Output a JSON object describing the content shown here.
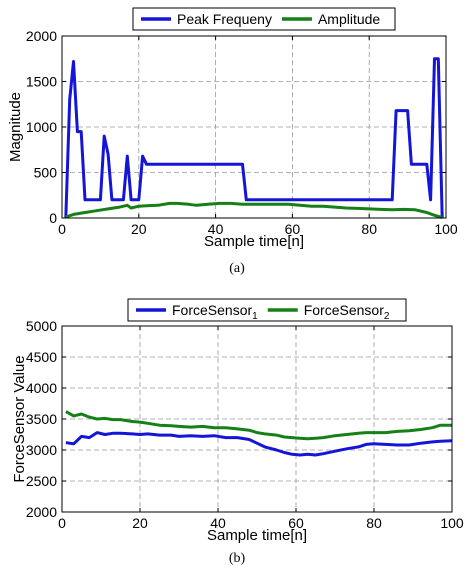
{
  "chart_data": [
    {
      "type": "line",
      "caption": "(a)",
      "xlabel": "Sample time[n]",
      "ylabel": "Magnitude",
      "xlim": [
        0,
        100
      ],
      "ylim": [
        0,
        2000
      ],
      "xticks": [
        0,
        20,
        40,
        60,
        80,
        100
      ],
      "yticks": [
        0,
        500,
        1000,
        1500,
        2000
      ],
      "grid": true,
      "legend_position": "top",
      "series": [
        {
          "name": "Peak Frequeny",
          "color": "#1515d8",
          "x": [
            1,
            2,
            3,
            4,
            5,
            6,
            7,
            8,
            9,
            10,
            11,
            12,
            13,
            14,
            15,
            16,
            17,
            18,
            19,
            20,
            21,
            22,
            23,
            47,
            48,
            86,
            87,
            88,
            89,
            90,
            91,
            92,
            93,
            94,
            95,
            96,
            97,
            98,
            99
          ],
          "y": [
            0,
            1300,
            1720,
            950,
            950,
            200,
            200,
            200,
            200,
            200,
            900,
            700,
            200,
            200,
            200,
            200,
            680,
            200,
            200,
            200,
            680,
            590,
            590,
            590,
            200,
            200,
            1180,
            1180,
            1180,
            1180,
            590,
            590,
            590,
            590,
            590,
            200,
            1750,
            1750,
            0
          ]
        },
        {
          "name": "Amplitude",
          "color": "#168016",
          "x": [
            1,
            3,
            6,
            9,
            12,
            15,
            17,
            18,
            20,
            22,
            25,
            28,
            30,
            33,
            35,
            38,
            41,
            44,
            47,
            50,
            53,
            56,
            59,
            62,
            65,
            68,
            71,
            74,
            77,
            80,
            83,
            86,
            89,
            92,
            95,
            97,
            99
          ],
          "y": [
            10,
            40,
            60,
            80,
            100,
            120,
            140,
            110,
            130,
            135,
            140,
            160,
            160,
            150,
            140,
            150,
            160,
            160,
            150,
            150,
            150,
            150,
            150,
            140,
            130,
            130,
            120,
            110,
            105,
            100,
            95,
            90,
            95,
            90,
            60,
            30,
            5
          ]
        }
      ]
    },
    {
      "type": "line",
      "caption": "(b)",
      "xlabel": "Sample time[n]",
      "ylabel": "ForceSensor Value",
      "xlim": [
        0,
        100
      ],
      "ylim": [
        2000,
        5000
      ],
      "xticks": [
        0,
        20,
        40,
        60,
        80,
        100
      ],
      "yticks": [
        2000,
        2500,
        3000,
        3500,
        4000,
        4500,
        5000
      ],
      "grid": true,
      "legend_position": "top",
      "series": [
        {
          "name": "ForceSensor",
          "subscript": "1",
          "color": "#1515d8",
          "x": [
            1,
            3,
            5,
            7,
            9,
            11,
            13,
            15,
            18,
            20,
            22,
            25,
            28,
            30,
            33,
            36,
            39,
            42,
            45,
            48,
            50,
            52,
            55,
            57,
            59,
            61,
            63,
            65,
            67,
            70,
            73,
            76,
            78,
            80,
            83,
            86,
            89,
            92,
            95,
            97,
            100
          ],
          "y": [
            3120,
            3100,
            3220,
            3200,
            3280,
            3250,
            3270,
            3270,
            3260,
            3250,
            3260,
            3240,
            3240,
            3220,
            3230,
            3220,
            3230,
            3200,
            3200,
            3170,
            3110,
            3050,
            3000,
            2960,
            2930,
            2920,
            2930,
            2920,
            2940,
            2980,
            3020,
            3050,
            3090,
            3100,
            3090,
            3080,
            3080,
            3110,
            3130,
            3140,
            3150
          ]
        },
        {
          "name": "ForceSensor",
          "subscript": "2",
          "color": "#168016",
          "x": [
            1,
            3,
            5,
            7,
            9,
            11,
            13,
            15,
            18,
            20,
            22,
            25,
            28,
            30,
            33,
            36,
            39,
            42,
            45,
            48,
            50,
            52,
            55,
            57,
            59,
            61,
            63,
            65,
            67,
            70,
            73,
            76,
            78,
            80,
            83,
            86,
            89,
            92,
            95,
            97,
            100
          ],
          "y": [
            3620,
            3550,
            3580,
            3530,
            3500,
            3510,
            3490,
            3490,
            3460,
            3450,
            3430,
            3400,
            3390,
            3380,
            3370,
            3380,
            3360,
            3360,
            3340,
            3320,
            3280,
            3260,
            3240,
            3210,
            3200,
            3190,
            3180,
            3190,
            3200,
            3230,
            3250,
            3270,
            3280,
            3280,
            3280,
            3300,
            3310,
            3330,
            3360,
            3400,
            3400
          ]
        }
      ]
    }
  ]
}
